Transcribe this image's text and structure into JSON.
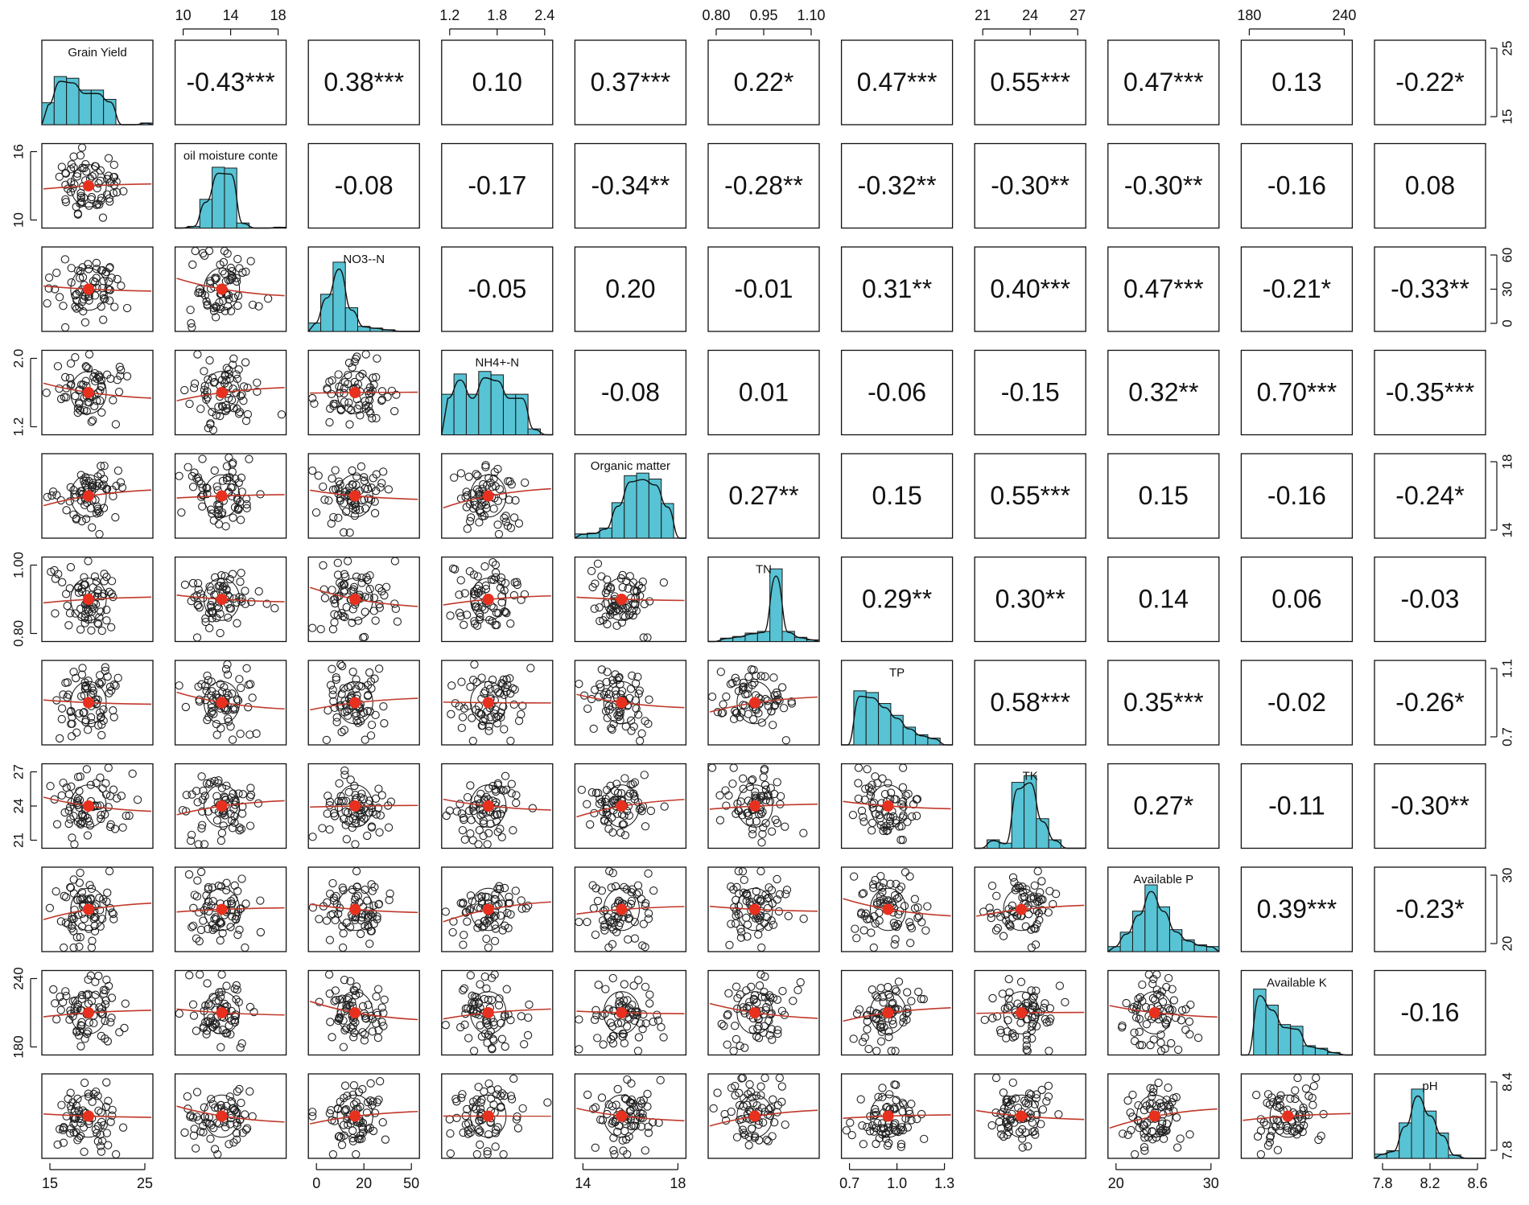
{
  "chart_data": {
    "type": "scatter-matrix",
    "variables": [
      "Grain Yield",
      "oil moisture conte",
      "NO3--N",
      "NH4+-N",
      "Organic matter",
      "TN",
      "TP",
      "TK",
      "Available P",
      "Available K",
      "pH"
    ],
    "correlations": [
      {
        "row": 0,
        "col": 1,
        "label": "-0.43***"
      },
      {
        "row": 0,
        "col": 2,
        "label": "0.38***"
      },
      {
        "row": 0,
        "col": 3,
        "label": "0.10"
      },
      {
        "row": 0,
        "col": 4,
        "label": "0.37***"
      },
      {
        "row": 0,
        "col": 5,
        "label": "0.22*"
      },
      {
        "row": 0,
        "col": 6,
        "label": "0.47***"
      },
      {
        "row": 0,
        "col": 7,
        "label": "0.55***"
      },
      {
        "row": 0,
        "col": 8,
        "label": "0.47***"
      },
      {
        "row": 0,
        "col": 9,
        "label": "0.13"
      },
      {
        "row": 0,
        "col": 10,
        "label": "-0.22*"
      },
      {
        "row": 1,
        "col": 2,
        "label": "-0.08"
      },
      {
        "row": 1,
        "col": 3,
        "label": "-0.17"
      },
      {
        "row": 1,
        "col": 4,
        "label": "-0.34**"
      },
      {
        "row": 1,
        "col": 5,
        "label": "-0.28**"
      },
      {
        "row": 1,
        "col": 6,
        "label": "-0.32**"
      },
      {
        "row": 1,
        "col": 7,
        "label": "-0.30**"
      },
      {
        "row": 1,
        "col": 8,
        "label": "-0.30**"
      },
      {
        "row": 1,
        "col": 9,
        "label": "-0.16"
      },
      {
        "row": 1,
        "col": 10,
        "label": "0.08"
      },
      {
        "row": 2,
        "col": 3,
        "label": "-0.05"
      },
      {
        "row": 2,
        "col": 4,
        "label": "0.20"
      },
      {
        "row": 2,
        "col": 5,
        "label": "-0.01"
      },
      {
        "row": 2,
        "col": 6,
        "label": "0.31**"
      },
      {
        "row": 2,
        "col": 7,
        "label": "0.40***"
      },
      {
        "row": 2,
        "col": 8,
        "label": "0.47***"
      },
      {
        "row": 2,
        "col": 9,
        "label": "-0.21*"
      },
      {
        "row": 2,
        "col": 10,
        "label": "-0.33**"
      },
      {
        "row": 3,
        "col": 4,
        "label": "-0.08"
      },
      {
        "row": 3,
        "col": 5,
        "label": "0.01"
      },
      {
        "row": 3,
        "col": 6,
        "label": "-0.06"
      },
      {
        "row": 3,
        "col": 7,
        "label": "-0.15"
      },
      {
        "row": 3,
        "col": 8,
        "label": "0.32**"
      },
      {
        "row": 3,
        "col": 9,
        "label": "0.70***"
      },
      {
        "row": 3,
        "col": 10,
        "label": "-0.35***"
      },
      {
        "row": 4,
        "col": 5,
        "label": "0.27**"
      },
      {
        "row": 4,
        "col": 6,
        "label": "0.15"
      },
      {
        "row": 4,
        "col": 7,
        "label": "0.55***"
      },
      {
        "row": 4,
        "col": 8,
        "label": "0.15"
      },
      {
        "row": 4,
        "col": 9,
        "label": "-0.16"
      },
      {
        "row": 4,
        "col": 10,
        "label": "-0.24*"
      },
      {
        "row": 5,
        "col": 6,
        "label": "0.29**"
      },
      {
        "row": 5,
        "col": 7,
        "label": "0.30**"
      },
      {
        "row": 5,
        "col": 8,
        "label": "0.14"
      },
      {
        "row": 5,
        "col": 9,
        "label": "0.06"
      },
      {
        "row": 5,
        "col": 10,
        "label": "-0.03"
      },
      {
        "row": 6,
        "col": 7,
        "label": "0.58***"
      },
      {
        "row": 6,
        "col": 8,
        "label": "0.35***"
      },
      {
        "row": 6,
        "col": 9,
        "label": "-0.02"
      },
      {
        "row": 6,
        "col": 10,
        "label": "-0.26*"
      },
      {
        "row": 7,
        "col": 8,
        "label": "0.27*"
      },
      {
        "row": 7,
        "col": 9,
        "label": "-0.11"
      },
      {
        "row": 7,
        "col": 10,
        "label": "-0.30**"
      },
      {
        "row": 8,
        "col": 9,
        "label": "0.39***"
      },
      {
        "row": 8,
        "col": 10,
        "label": "-0.23*"
      },
      {
        "row": 9,
        "col": 10,
        "label": "-0.16"
      }
    ],
    "axis_ticks": {
      "top": [
        {
          "col": 1,
          "ticks": [
            "10",
            "14",
            "18"
          ]
        },
        {
          "col": 3,
          "ticks": [
            "1.2",
            "1.8",
            "2.4"
          ]
        },
        {
          "col": 5,
          "ticks": [
            "0.80",
            "0.95",
            "1.10"
          ]
        },
        {
          "col": 7,
          "ticks": [
            "21",
            "24",
            "27"
          ]
        },
        {
          "col": 9,
          "ticks": [
            "180",
            "240"
          ]
        }
      ],
      "bottom": [
        {
          "col": 0,
          "ticks": [
            "15",
            "25"
          ]
        },
        {
          "col": 2,
          "ticks": [
            "0",
            "20",
            "50"
          ]
        },
        {
          "col": 4,
          "ticks": [
            "14",
            "18"
          ]
        },
        {
          "col": 6,
          "ticks": [
            "0.7",
            "1.0",
            "1.3"
          ]
        },
        {
          "col": 8,
          "ticks": [
            "20",
            "30"
          ]
        },
        {
          "col": 10,
          "ticks": [
            "7.8",
            "8.2",
            "8.6"
          ]
        }
      ],
      "left": [
        {
          "row": 1,
          "ticks": [
            "10",
            "16"
          ]
        },
        {
          "row": 3,
          "ticks": [
            "1.2",
            "2.0"
          ]
        },
        {
          "row": 5,
          "ticks": [
            "0.80",
            "1.00"
          ]
        },
        {
          "row": 7,
          "ticks": [
            "21",
            "24",
            "27"
          ]
        },
        {
          "row": 9,
          "ticks": [
            "180",
            "240"
          ]
        }
      ],
      "right": [
        {
          "row": 0,
          "ticks": [
            "15",
            "25"
          ]
        },
        {
          "row": 2,
          "ticks": [
            "0",
            "30",
            "60"
          ]
        },
        {
          "row": 4,
          "ticks": [
            "14",
            "18"
          ]
        },
        {
          "row": 6,
          "ticks": [
            "0.7",
            "1.1"
          ]
        },
        {
          "row": 8,
          "ticks": [
            "20",
            "30"
          ]
        },
        {
          "row": 10,
          "ticks": [
            "7.8",
            "8.4"
          ]
        }
      ]
    },
    "histograms": [
      [
        0.26,
        0.57,
        0.55,
        0.41,
        0.41,
        0.3,
        0.0,
        0.0,
        0.02
      ],
      [
        0.0,
        0.02,
        0.34,
        0.72,
        0.71,
        0.06,
        0.0,
        0.0,
        0.01
      ],
      [
        0.1,
        0.44,
        0.82,
        0.28,
        0.06,
        0.04,
        0.02,
        0.0,
        0.0
      ],
      [
        0.48,
        0.72,
        0.48,
        0.75,
        0.71,
        0.48,
        0.48,
        0.07,
        0.0
      ],
      [
        0.05,
        0.06,
        0.12,
        0.42,
        0.74,
        0.77,
        0.7,
        0.41,
        0.0
      ],
      [
        0.0,
        0.04,
        0.06,
        0.1,
        0.12,
        0.86,
        0.12,
        0.05,
        0.02
      ],
      [
        0.0,
        0.64,
        0.62,
        0.49,
        0.35,
        0.21,
        0.12,
        0.08,
        0.0
      ],
      [
        0.0,
        0.1,
        0.06,
        0.78,
        0.86,
        0.35,
        0.1,
        0.0,
        0.0
      ],
      [
        0.06,
        0.23,
        0.48,
        0.79,
        0.53,
        0.26,
        0.14,
        0.08,
        0.06
      ],
      [
        0.0,
        0.78,
        0.59,
        0.36,
        0.34,
        0.11,
        0.08,
        0.03,
        0.0
      ],
      [
        0.05,
        0.09,
        0.42,
        0.82,
        0.56,
        0.3,
        0.04,
        0.0,
        0.0
      ]
    ],
    "colors": {
      "hist_fill": "#57c3d4",
      "points": "#222222",
      "smooth_line": "#c0392b",
      "centroid": "#e8301e",
      "frame": "#111111"
    }
  }
}
